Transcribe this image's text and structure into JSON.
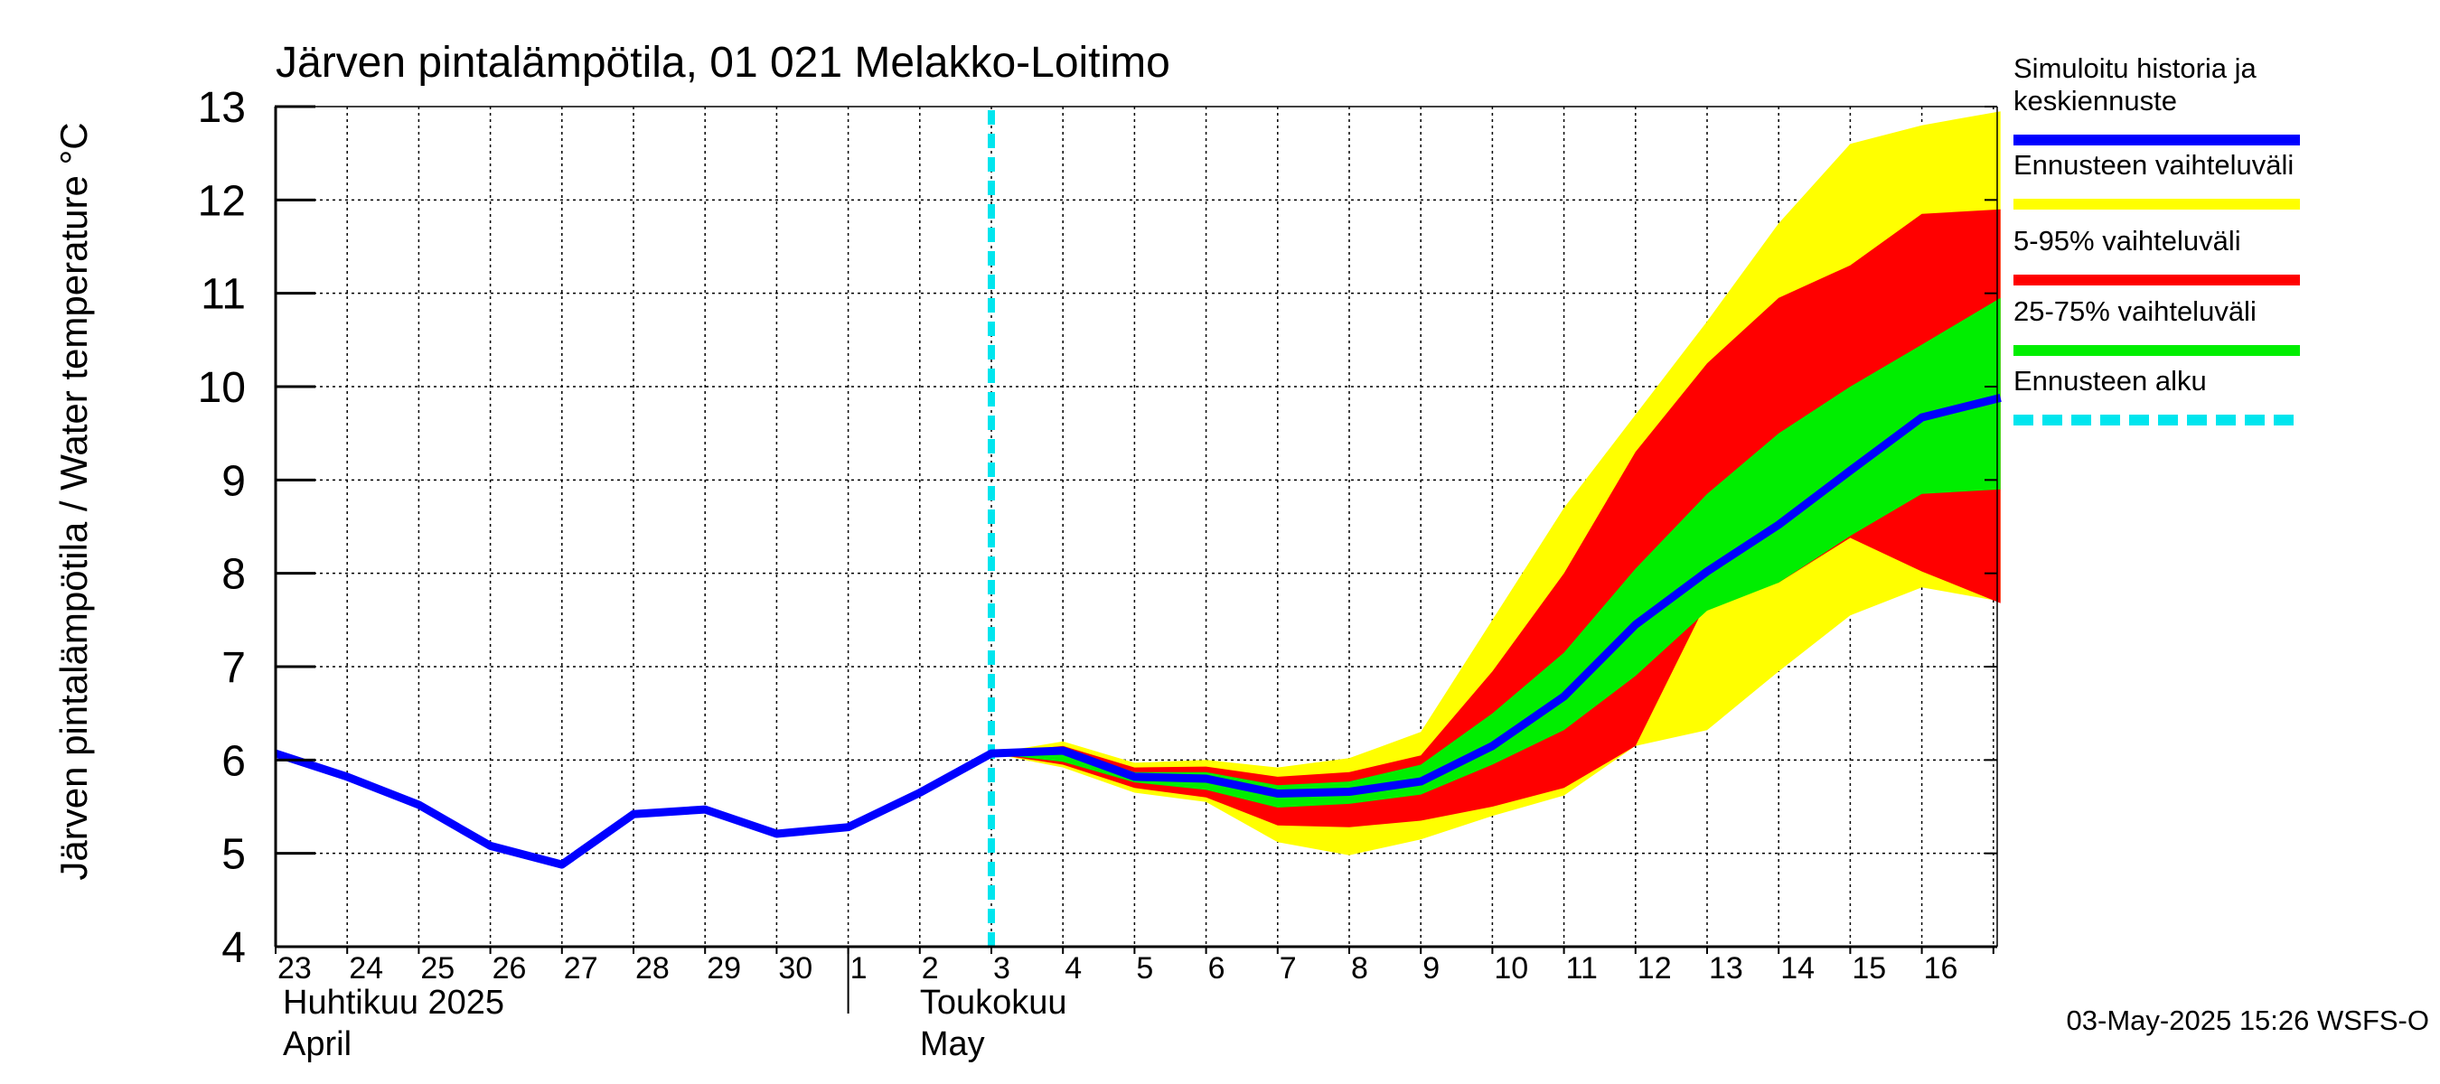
{
  "chart_data": {
    "type": "area",
    "title": "Järven pintalämpötila, 01 021 Melakko-Loitimo",
    "ylabel": "Järven pintalämpötila / Water temperature °C",
    "xlabel": "",
    "ylim": [
      4,
      13
    ],
    "yticks": [
      4,
      5,
      6,
      7,
      8,
      9,
      10,
      11,
      12,
      13
    ],
    "grid": true,
    "x_days": [
      "23",
      "24",
      "25",
      "26",
      "27",
      "28",
      "29",
      "30",
      "1",
      "2",
      "3",
      "4",
      "5",
      "6",
      "7",
      "8",
      "9",
      "10",
      "11",
      "12",
      "13",
      "14",
      "15",
      "16"
    ],
    "x_range_days": [
      0,
      24.1
    ],
    "month_labels": [
      {
        "fi": "Huhtikuu  2025",
        "en": "April",
        "day_index": 0
      },
      {
        "fi": "Toukokuu",
        "en": "May",
        "day_index": 8.9
      }
    ],
    "month_separator_day": 8,
    "forecast_start_day": 10,
    "history": {
      "x": [
        0,
        1,
        2,
        3,
        4,
        5,
        6,
        7,
        8,
        9,
        10
      ],
      "y": [
        6.07,
        5.82,
        5.52,
        5.08,
        4.88,
        5.42,
        5.47,
        5.21,
        5.28,
        5.65,
        6.07
      ]
    },
    "forecast": {
      "x": [
        10,
        11,
        12,
        13,
        14,
        15,
        16,
        17,
        18,
        19,
        20,
        21,
        22,
        23,
        24.1
      ],
      "range_high": [
        6.07,
        6.2,
        5.97,
        6.0,
        5.92,
        6.02,
        6.3,
        7.5,
        8.7,
        9.7,
        10.7,
        11.75,
        12.6,
        12.8,
        12.95
      ],
      "range_low": [
        6.07,
        5.92,
        5.65,
        5.55,
        5.12,
        4.98,
        5.15,
        5.4,
        5.62,
        6.15,
        6.32,
        6.95,
        7.55,
        7.85,
        7.7
      ],
      "p95": [
        6.07,
        6.15,
        5.92,
        5.93,
        5.82,
        5.87,
        6.05,
        6.95,
        8.0,
        9.3,
        10.25,
        10.95,
        11.3,
        11.85,
        11.9
      ],
      "p05": [
        6.07,
        5.95,
        5.7,
        5.6,
        5.3,
        5.28,
        5.35,
        5.5,
        5.7,
        6.15,
        7.7,
        7.9,
        8.38,
        8.02,
        7.68
      ],
      "p75": [
        6.07,
        6.12,
        5.87,
        5.87,
        5.73,
        5.77,
        5.95,
        6.5,
        7.15,
        8.05,
        8.85,
        9.5,
        10.0,
        10.45,
        10.95
      ],
      "p25": [
        6.07,
        5.98,
        5.76,
        5.68,
        5.49,
        5.53,
        5.63,
        5.95,
        6.32,
        6.9,
        7.6,
        7.9,
        8.4,
        8.85,
        8.9
      ],
      "median": [
        6.07,
        6.1,
        5.82,
        5.8,
        5.64,
        5.66,
        5.77,
        6.15,
        6.68,
        7.45,
        8.02,
        8.52,
        9.1,
        9.67,
        9.88
      ]
    },
    "series": [
      {
        "name": "Simuloitu historia ja keskiennuste",
        "color": "#0000ff"
      },
      {
        "name": "Ennusteen vaihteluväli",
        "color": "#ffff00"
      },
      {
        "name": "5-95% vaihteluväli",
        "color": "#ff0000"
      },
      {
        "name": "25-75% vaihteluväli",
        "color": "#00ee00"
      },
      {
        "name": "Ennusteen alku",
        "color": "#00e5ee"
      }
    ],
    "legend": {
      "position": "right",
      "entries": [
        {
          "lines": [
            "Simuloitu historia ja",
            "keskiennuste"
          ],
          "color": "#0000ff",
          "style": "solid"
        },
        {
          "lines": [
            "Ennusteen vaihteluväli"
          ],
          "color": "#ffff00",
          "style": "solid"
        },
        {
          "lines": [
            "5-95% vaihteluväli"
          ],
          "color": "#ff0000",
          "style": "solid"
        },
        {
          "lines": [
            "25-75% vaihteluväli"
          ],
          "color": "#00ee00",
          "style": "solid"
        },
        {
          "lines": [
            "Ennusteen alku"
          ],
          "color": "#00e5ee",
          "style": "dashed"
        }
      ]
    },
    "timestamp": "03-May-2025 15:26 WSFS-O"
  }
}
